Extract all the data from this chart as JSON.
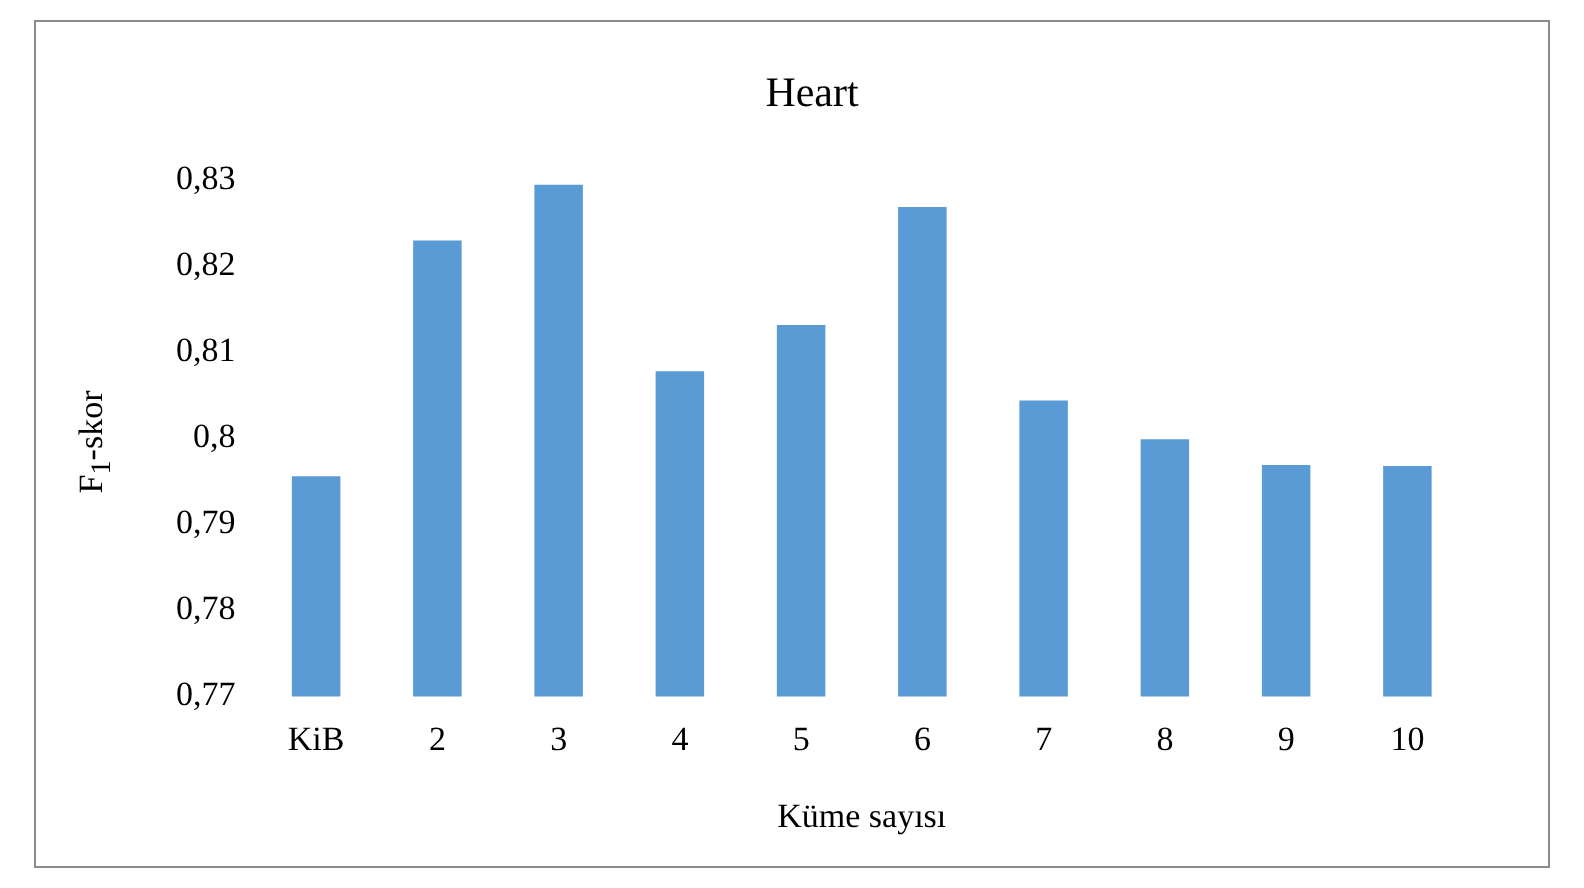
{
  "chart_data": {
    "type": "bar",
    "title": "Heart",
    "xlabel": "Küme sayısı",
    "ylabel": "F$_{1}$-skor",
    "categories": [
      "KiB",
      "2",
      "3",
      "4",
      "5",
      "6",
      "7",
      "8",
      "9",
      "10"
    ],
    "values": [
      0.7956,
      0.823,
      0.8295,
      0.8078,
      0.8132,
      0.8269,
      0.8044,
      0.7999,
      0.7969,
      0.7968
    ],
    "color": "#5b9bd5",
    "ylim": [
      0.77,
      0.83
    ],
    "yticks": [
      {
        "value": 0.77,
        "label": "0,77"
      },
      {
        "value": 0.78,
        "label": "0,78"
      },
      {
        "value": 0.79,
        "label": "0,79"
      },
      {
        "value": 0.8,
        "label": "0,8"
      },
      {
        "value": 0.81,
        "label": "0,81"
      },
      {
        "value": 0.82,
        "label": "0,82"
      },
      {
        "value": 0.83,
        "label": "0,83"
      }
    ]
  }
}
